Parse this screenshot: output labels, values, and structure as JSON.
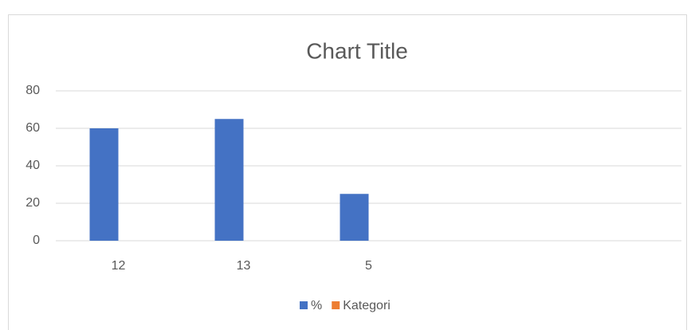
{
  "chart_data": {
    "type": "bar",
    "title": "Chart Title",
    "categories": [
      "12",
      "13",
      "5",
      null,
      null
    ],
    "series": [
      {
        "name": "%",
        "color": "#4472c4",
        "values": [
          60,
          65,
          25,
          null,
          null
        ]
      },
      {
        "name": "Kategori",
        "color": "#ed7d31",
        "values": [
          null,
          null,
          null,
          null,
          null
        ]
      }
    ],
    "ylim": [
      0,
      80
    ],
    "yticks": [
      0,
      20,
      40,
      60,
      80
    ],
    "grid": true,
    "legend": "bottom"
  }
}
